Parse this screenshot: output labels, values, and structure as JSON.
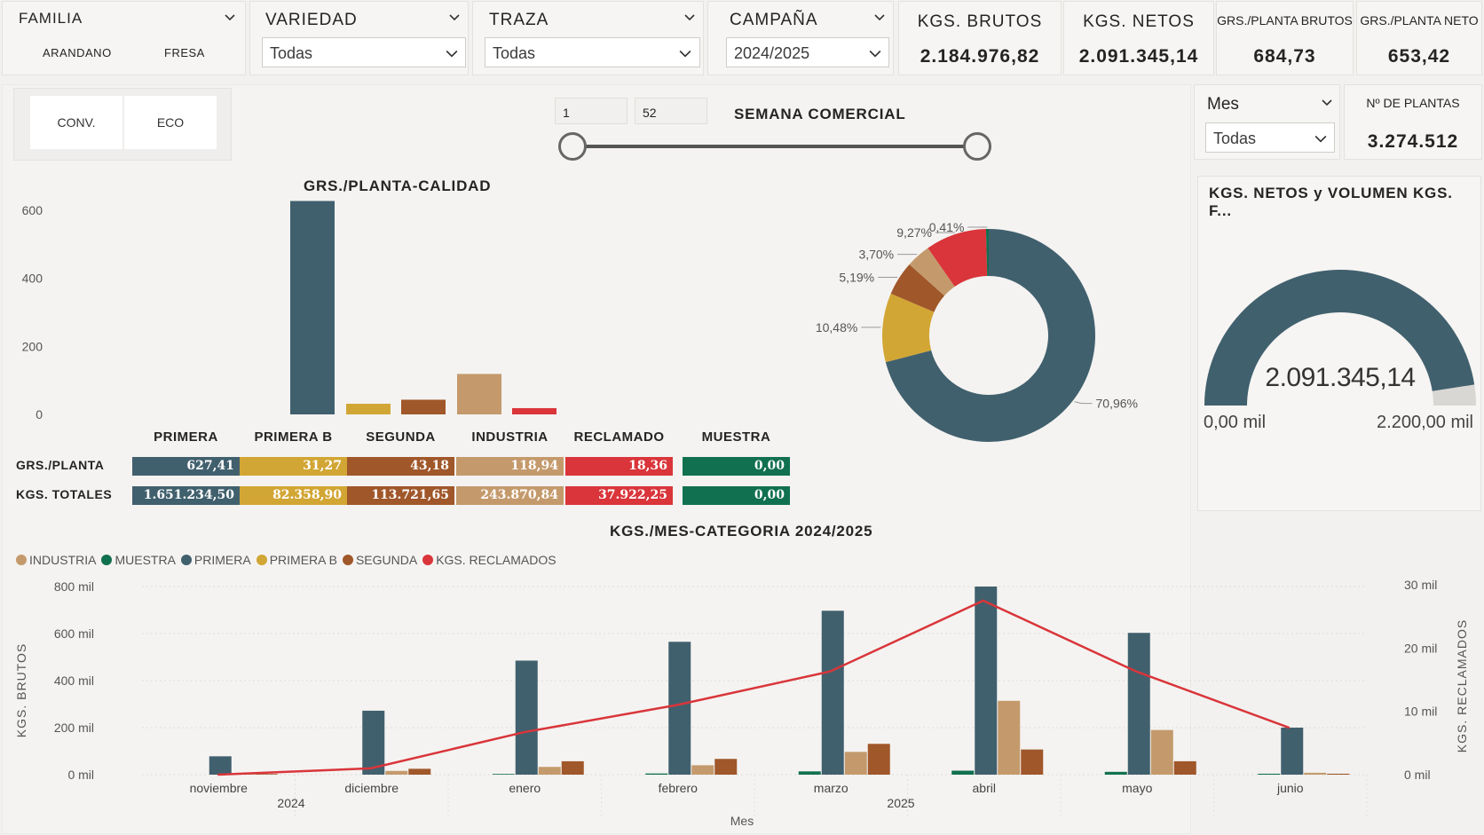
{
  "colors": {
    "primera": "#41606e",
    "primera_b": "#d2a634",
    "segunda": "#a0572a",
    "industria": "#c49a6c",
    "reclamado": "#d9353a",
    "muestra": "#117050"
  },
  "filters": {
    "familia": {
      "title": "FAMILIA",
      "options": [
        "ARANDANO",
        "FRESA"
      ]
    },
    "variedad": {
      "title": "VARIEDAD",
      "value": "Todas"
    },
    "traza": {
      "title": "TRAZA",
      "value": "Todas"
    },
    "campana": {
      "title": "CAMPAÑA",
      "value": "2024/2025"
    },
    "tipo": {
      "options": [
        "CONV.",
        "ECO"
      ]
    },
    "mes": {
      "title": "Mes",
      "value": "Todas"
    }
  },
  "kpis": {
    "kgs_brutos": {
      "label": "KGS. BRUTOS",
      "value": "2.184.976,82"
    },
    "kgs_netos": {
      "label": "KGS. NETOS",
      "value": "2.091.345,14"
    },
    "grs_planta_brutos": {
      "label": "GRS./PLANTA BRUTOS",
      "value": "684,73"
    },
    "grs_planta_neto": {
      "label": "GRS./PLANTA NETO",
      "value": "653,42"
    },
    "n_plantas": {
      "label": "Nº DE PLANTAS",
      "value": "3.274.512"
    }
  },
  "semana": {
    "title": "SEMANA COMERCIAL",
    "from": "1",
    "to": "52"
  },
  "table": {
    "headers": [
      "PRIMERA",
      "PRIMERA B",
      "SEGUNDA",
      "INDUSTRIA",
      "RECLAMADO",
      "MUESTRA"
    ],
    "row_labels": [
      "GRS./PLANTA",
      "KGS. TOTALES"
    ],
    "grs_planta": [
      "627,41",
      "31,27",
      "43,18",
      "118,94",
      "18,36",
      "0,00"
    ],
    "kgs_totales": [
      "1.651.234,50",
      "82.358,90",
      "113.721,65",
      "243.870,84",
      "37.922,25",
      "0,00"
    ]
  },
  "gauge": {
    "title": "KGS. NETOS y VOLUMEN KGS. F...",
    "value_label": "2.091.345,14",
    "min_label": "0,00 mil",
    "max_label": "2.200,00 mil",
    "fraction": 0.9506
  },
  "chart_data": [
    {
      "type": "bar",
      "title": "GRS./PLANTA-CALIDAD",
      "categories": [
        "PRIMERA",
        "PRIMERA B",
        "SEGUNDA",
        "INDUSTRIA",
        "RECLAMADO",
        "MUESTRA"
      ],
      "values": [
        627.41,
        31.27,
        43.18,
        118.94,
        18.36,
        0
      ],
      "ylim": [
        0,
        600
      ],
      "yticks": [
        "0",
        "200",
        "400",
        "600"
      ],
      "grid": false
    },
    {
      "type": "pie",
      "donut": true,
      "slices": [
        {
          "category": "PRIMERA",
          "value": 70.96,
          "label": "70,96%"
        },
        {
          "category": "PRIMERA B",
          "value": 10.48,
          "label": "10,48%"
        },
        {
          "category": "SEGUNDA",
          "value": 5.19,
          "label": "5,19%"
        },
        {
          "category": "INDUSTRIA",
          "value": 3.7,
          "label": "3,70%"
        },
        {
          "category": "RECLAMADO",
          "value": 9.27,
          "label": "9,27%"
        },
        {
          "category": "MUESTRA",
          "value": 0.41,
          "label": "0,41%"
        }
      ]
    },
    {
      "type": "bar",
      "title": "KGS./MES-CATEGORIA 2024/2025",
      "xlabel": "Mes",
      "ylabel": "KGS. BRUTOS",
      "y2label": "KGS. RECLAMADOS",
      "legend": "top-left",
      "categories": [
        "noviembre",
        "diciembre",
        "enero",
        "febrero",
        "marzo",
        "abril",
        "mayo",
        "junio"
      ],
      "years": [
        {
          "label": "2024"
        },
        {
          "label": "2025"
        }
      ],
      "ylim": [
        0,
        800000
      ],
      "yticks": [
        "0 mil",
        "200 mil",
        "400 mil",
        "600 mil",
        "800 mil"
      ],
      "y2lim": [
        0,
        30000
      ],
      "y2ticks": [
        "0 mil",
        "10 mil",
        "20 mil",
        "30 mil"
      ],
      "series": [
        {
          "name": "MUESTRA",
          "key": "muestra",
          "values": [
            0,
            0,
            3000,
            5000,
            14000,
            17000,
            12000,
            4000
          ]
        },
        {
          "name": "PRIMERA",
          "key": "primera",
          "values": [
            78000,
            272000,
            485000,
            565000,
            697000,
            800000,
            603000,
            200000
          ]
        },
        {
          "name": "INDUSTRIA",
          "key": "industria",
          "values": [
            2000,
            16000,
            33000,
            40000,
            97000,
            314000,
            190000,
            8000
          ]
        },
        {
          "name": "SEGUNDA",
          "key": "segunda",
          "values": [
            3000,
            25000,
            57000,
            67000,
            131000,
            107000,
            57000,
            4000
          ]
        },
        {
          "name": "PRIMERA B",
          "key": "primera_b",
          "values": [
            0,
            0,
            0,
            0,
            0,
            0,
            0,
            0
          ]
        },
        {
          "name": "KGS. RECLAMADOS",
          "key": "reclamado",
          "axis": "secondary",
          "values": [
            0,
            1000,
            6700,
            11000,
            16300,
            27500,
            16300,
            7400
          ]
        }
      ],
      "legend_order": [
        "INDUSTRIA",
        "MUESTRA",
        "PRIMERA",
        "PRIMERA B",
        "SEGUNDA",
        "KGS. RECLAMADOS"
      ]
    }
  ]
}
